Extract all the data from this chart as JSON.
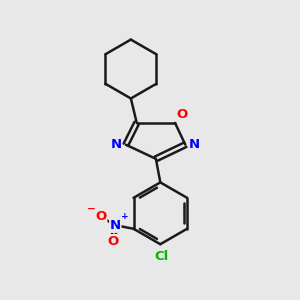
{
  "bg_color": "#e8e8e8",
  "bond_color": "#1a1a1a",
  "bond_width": 1.8,
  "atom_colors": {
    "O": "#ff0000",
    "N": "#0000ff",
    "Cl": "#00bb00",
    "NO2_N": "#0000ff",
    "NO2_O": "#ff0000"
  },
  "font_size": 9.5,
  "font_size_small": 6.5
}
